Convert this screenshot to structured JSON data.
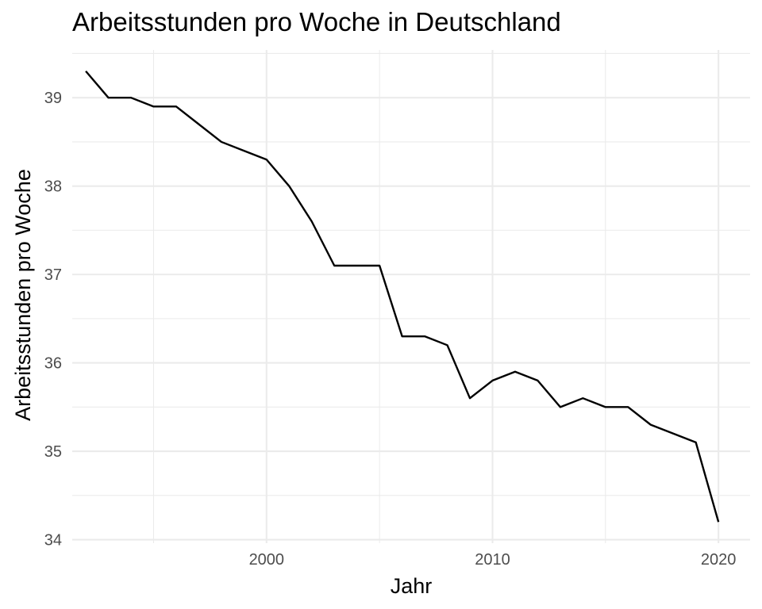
{
  "chart_data": {
    "type": "line",
    "title": "Arbeitsstunden pro Woche in Deutschland",
    "xlabel": "Jahr",
    "ylabel": "Arbeitsstunden pro Woche",
    "xlim": [
      1991.4,
      2021.4
    ],
    "ylim": [
      33.96,
      39.54
    ],
    "x_ticks": [
      2000,
      2010,
      2020
    ],
    "x_minor_ticks": [
      1995,
      2005,
      2015
    ],
    "y_ticks": [
      34,
      35,
      36,
      37,
      38,
      39
    ],
    "y_minor_ticks": [
      34.5,
      35.5,
      36.5,
      37.5,
      38.5,
      39.5
    ],
    "grid": true,
    "legend": "none",
    "line_color": "#000000",
    "grid_color": "#ebebeb",
    "x": [
      1992,
      1993,
      1994,
      1995,
      1996,
      1997,
      1998,
      1999,
      2000,
      2001,
      2002,
      2003,
      2004,
      2005,
      2006,
      2007,
      2008,
      2009,
      2010,
      2011,
      2012,
      2013,
      2014,
      2015,
      2016,
      2017,
      2018,
      2019,
      2020
    ],
    "values": [
      39.3,
      39.0,
      39.0,
      38.9,
      38.9,
      38.7,
      38.5,
      38.4,
      38.3,
      38.0,
      37.6,
      37.1,
      37.1,
      37.1,
      36.3,
      36.3,
      36.2,
      35.6,
      35.8,
      35.9,
      35.8,
      35.5,
      35.6,
      35.5,
      35.5,
      35.3,
      35.2,
      35.1,
      34.2
    ]
  }
}
